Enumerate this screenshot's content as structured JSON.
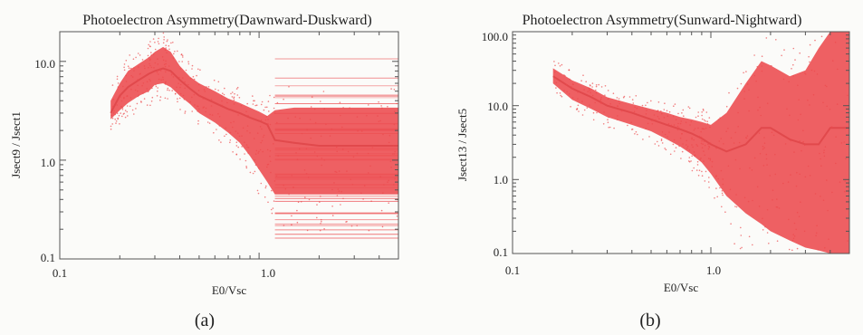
{
  "chart_data": [
    {
      "type": "scatter",
      "title": "Photoelectron Asymmetry(Dawnward-Duskward)",
      "xlabel": "E0/Vsc",
      "ylabel": "Jsect9 / Jsect1",
      "xscale": "log",
      "yscale": "log",
      "xlim": [
        0.1,
        5.0
      ],
      "ylim": [
        0.1,
        20.0
      ],
      "xticks": [
        "0.1",
        "1.0"
      ],
      "yticks": [
        "0.1",
        "1.0",
        "10.0"
      ],
      "panel_label": "(a)",
      "color": "#ec4a4d",
      "series": [
        {
          "x": [
            0.18,
            0.2,
            0.22,
            0.25,
            0.28,
            0.3,
            0.33,
            0.36,
            0.4,
            0.45,
            0.5,
            0.6,
            0.7,
            0.8,
            0.9,
            1.0,
            1.1,
            1.2,
            1.5,
            2.0,
            2.5,
            3.0,
            4.0,
            5.0
          ],
          "y": [
            3.0,
            4.5,
            5.5,
            6.5,
            7.5,
            8.0,
            8.5,
            8.0,
            6.5,
            5.3,
            4.5,
            3.8,
            3.3,
            3.0,
            2.7,
            2.5,
            2.3,
            1.6,
            1.5,
            1.4,
            1.4,
            1.4,
            1.4,
            1.4
          ],
          "y_low": [
            2.6,
            3.2,
            3.8,
            4.5,
            5.0,
            5.8,
            6.0,
            5.5,
            4.5,
            3.7,
            3.0,
            2.4,
            1.9,
            1.5,
            1.1,
            0.8,
            0.6,
            0.45,
            0.45,
            0.45,
            0.45,
            0.45,
            0.45,
            0.45
          ],
          "y_high": [
            4.0,
            6.0,
            8.0,
            9.5,
            11.0,
            12.5,
            14.0,
            12.5,
            9.0,
            7.0,
            6.0,
            5.0,
            4.2,
            3.8,
            3.4,
            3.1,
            2.8,
            3.2,
            3.4,
            3.4,
            3.4,
            3.4,
            3.4,
            3.4
          ]
        }
      ]
    },
    {
      "type": "scatter",
      "title": "Photoelectron Asymmetry(Sunward-Nightward)",
      "xlabel": "E0/Vsc",
      "ylabel": "Jsect13 / Jsect5",
      "xscale": "log",
      "yscale": "log",
      "xlim": [
        0.1,
        5.0
      ],
      "ylim": [
        0.1,
        100.0
      ],
      "xticks": [
        "0.1",
        "1.0"
      ],
      "yticks": [
        "0.1",
        "1.0",
        "10.0",
        "100.0"
      ],
      "panel_label": "(b)",
      "color": "#ec4a4d",
      "series": [
        {
          "x": [
            0.16,
            0.2,
            0.25,
            0.3,
            0.4,
            0.5,
            0.6,
            0.7,
            0.8,
            0.9,
            1.0,
            1.2,
            1.5,
            1.8,
            2.0,
            2.5,
            3.0,
            3.5,
            4.0,
            5.0
          ],
          "y": [
            25,
            17,
            13,
            10,
            8,
            6.5,
            5.5,
            4.8,
            4.2,
            3.6,
            3.0,
            2.4,
            3.0,
            5.0,
            5.0,
            3.5,
            3.0,
            3.0,
            5.0,
            5.0
          ],
          "y_low": [
            20,
            12,
            9,
            7,
            5.5,
            4.5,
            3.5,
            2.8,
            2.2,
            1.7,
            1.2,
            0.6,
            0.35,
            0.25,
            0.2,
            0.15,
            0.12,
            0.11,
            0.1,
            0.1
          ],
          "y_high": [
            32,
            22,
            17,
            13,
            10.5,
            9,
            8,
            7,
            6.5,
            6,
            5.5,
            8,
            20,
            40,
            35,
            25,
            30,
            60,
            100,
            100
          ]
        }
      ]
    }
  ]
}
